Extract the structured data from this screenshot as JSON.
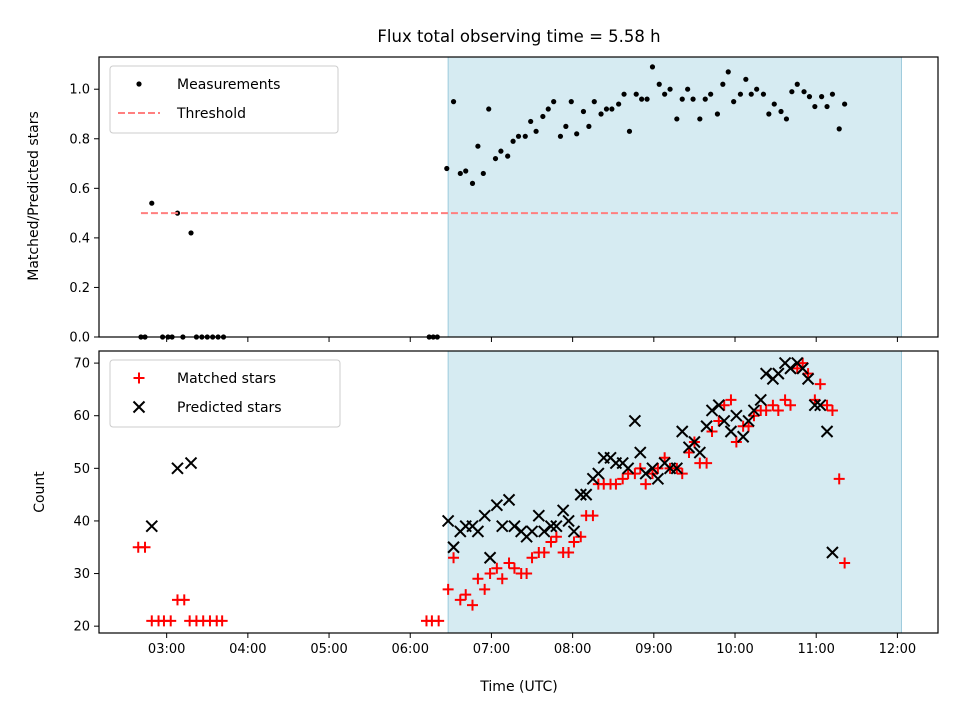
{
  "title": "Flux total observing time = 5.58 h",
  "xlabel": "Time (UTC)",
  "chart_data": [
    {
      "type": "scatter",
      "ylabel": "Matched/Predicted stars",
      "xlim": [
        "02:10",
        "12:30"
      ],
      "ylim": [
        0,
        1.13
      ],
      "yticks": [
        "0.0",
        "0.2",
        "0.4",
        "0.6",
        "0.8",
        "1.0"
      ],
      "ytick_values": [
        0,
        0.2,
        0.4,
        0.6,
        0.8,
        1.0
      ],
      "xticks": [
        "03:00",
        "04:00",
        "05:00",
        "06:00",
        "07:00",
        "08:00",
        "09:00",
        "10:00",
        "11:00",
        "12:00"
      ],
      "shaded_interval": [
        "06:28",
        "12:03"
      ],
      "legend_position": "upper left",
      "series": [
        {
          "name": "Measurements",
          "marker": "dot",
          "color": "#000000",
          "points": [
            [
              "02:41",
              0
            ],
            [
              "02:44",
              0
            ],
            [
              "02:49",
              0.54
            ],
            [
              "02:57",
              0
            ],
            [
              "03:01",
              0
            ],
            [
              "03:04",
              0
            ],
            [
              "03:08",
              0.5
            ],
            [
              "03:12",
              0
            ],
            [
              "03:18",
              0.42
            ],
            [
              "03:22",
              0
            ],
            [
              "03:26",
              0
            ],
            [
              "03:30",
              0
            ],
            [
              "03:34",
              0
            ],
            [
              "03:38",
              0
            ],
            [
              "03:42",
              0
            ],
            [
              "06:14",
              0
            ],
            [
              "06:17",
              0
            ],
            [
              "06:20",
              0
            ],
            [
              "06:27",
              0.68
            ],
            [
              "06:32",
              0.95
            ],
            [
              "06:37",
              0.66
            ],
            [
              "06:41",
              0.67
            ],
            [
              "06:46",
              0.62
            ],
            [
              "06:50",
              0.77
            ],
            [
              "06:54",
              0.66
            ],
            [
              "06:58",
              0.92
            ],
            [
              "07:03",
              0.72
            ],
            [
              "07:07",
              0.75
            ],
            [
              "07:12",
              0.73
            ],
            [
              "07:16",
              0.79
            ],
            [
              "07:20",
              0.81
            ],
            [
              "07:25",
              0.81
            ],
            [
              "07:29",
              0.87
            ],
            [
              "07:33",
              0.83
            ],
            [
              "07:38",
              0.89
            ],
            [
              "07:42",
              0.92
            ],
            [
              "07:46",
              0.95
            ],
            [
              "07:51",
              0.81
            ],
            [
              "07:55",
              0.85
            ],
            [
              "07:59",
              0.95
            ],
            [
              "08:03",
              0.82
            ],
            [
              "08:08",
              0.91
            ],
            [
              "08:12",
              0.85
            ],
            [
              "08:16",
              0.95
            ],
            [
              "08:21",
              0.9
            ],
            [
              "08:25",
              0.92
            ],
            [
              "08:29",
              0.92
            ],
            [
              "08:34",
              0.94
            ],
            [
              "08:38",
              0.98
            ],
            [
              "08:42",
              0.83
            ],
            [
              "08:47",
              0.98
            ],
            [
              "08:51",
              0.96
            ],
            [
              "08:55",
              0.96
            ],
            [
              "08:59",
              1.09
            ],
            [
              "09:04",
              1.02
            ],
            [
              "09:08",
              0.98
            ],
            [
              "09:12",
              1.0
            ],
            [
              "09:17",
              0.88
            ],
            [
              "09:21",
              0.96
            ],
            [
              "09:25",
              1.0
            ],
            [
              "09:29",
              0.96
            ],
            [
              "09:34",
              0.88
            ],
            [
              "09:38",
              0.96
            ],
            [
              "09:42",
              0.98
            ],
            [
              "09:47",
              0.9
            ],
            [
              "09:51",
              1.02
            ],
            [
              "09:55",
              1.07
            ],
            [
              "09:59",
              0.95
            ],
            [
              "10:04",
              0.98
            ],
            [
              "10:08",
              1.04
            ],
            [
              "10:12",
              0.98
            ],
            [
              "10:16",
              1.0
            ],
            [
              "10:21",
              0.98
            ],
            [
              "10:25",
              0.9
            ],
            [
              "10:29",
              0.94
            ],
            [
              "10:34",
              0.91
            ],
            [
              "10:38",
              0.88
            ],
            [
              "10:42",
              0.99
            ],
            [
              "10:46",
              1.02
            ],
            [
              "10:51",
              0.99
            ],
            [
              "10:55",
              0.97
            ],
            [
              "10:59",
              0.93
            ],
            [
              "11:04",
              0.97
            ],
            [
              "11:08",
              0.93
            ],
            [
              "11:12",
              0.98
            ],
            [
              "11:17",
              0.84
            ],
            [
              "11:21",
              0.94
            ]
          ]
        },
        {
          "name": "Threshold",
          "style": "dashed",
          "color": "#ff7f7f",
          "points": [
            [
              "02:41",
              0.5
            ],
            [
              "12:02",
              0.5
            ]
          ]
        }
      ]
    },
    {
      "type": "scatter",
      "ylabel": "Count",
      "xlim": [
        "02:10",
        "12:30"
      ],
      "ylim": [
        18.7,
        72.3
      ],
      "yticks": [
        "20",
        "30",
        "40",
        "50",
        "60",
        "70"
      ],
      "ytick_values": [
        20,
        30,
        40,
        50,
        60,
        70
      ],
      "xticks": [
        "03:00",
        "04:00",
        "05:00",
        "06:00",
        "07:00",
        "08:00",
        "09:00",
        "10:00",
        "11:00",
        "12:00"
      ],
      "shaded_interval": [
        "06:28",
        "12:03"
      ],
      "legend_position": "upper left",
      "series": [
        {
          "name": "Matched stars",
          "marker": "plus",
          "color": "#ff0000",
          "points": [
            [
              "02:39",
              35
            ],
            [
              "02:44",
              35
            ],
            [
              "02:49",
              21
            ],
            [
              "02:54",
              21
            ],
            [
              "02:58",
              21
            ],
            [
              "03:03",
              21
            ],
            [
              "03:08",
              25
            ],
            [
              "03:13",
              25
            ],
            [
              "03:17",
              21
            ],
            [
              "03:22",
              21
            ],
            [
              "03:27",
              21
            ],
            [
              "03:32",
              21
            ],
            [
              "03:37",
              21
            ],
            [
              "03:41",
              21
            ],
            [
              "06:12",
              21
            ],
            [
              "06:16",
              21
            ],
            [
              "06:21",
              21
            ],
            [
              "06:28",
              27
            ],
            [
              "06:32",
              33
            ],
            [
              "06:37",
              25
            ],
            [
              "06:41",
              26
            ],
            [
              "06:46",
              24
            ],
            [
              "06:50",
              29
            ],
            [
              "06:55",
              27
            ],
            [
              "06:59",
              30
            ],
            [
              "07:04",
              31
            ],
            [
              "07:08",
              29
            ],
            [
              "07:13",
              32
            ],
            [
              "07:17",
              31
            ],
            [
              "07:22",
              30
            ],
            [
              "07:26",
              30
            ],
            [
              "07:30",
              33
            ],
            [
              "07:35",
              34
            ],
            [
              "07:39",
              34
            ],
            [
              "07:44",
              36
            ],
            [
              "07:48",
              37
            ],
            [
              "07:53",
              34
            ],
            [
              "07:57",
              34
            ],
            [
              "08:01",
              36
            ],
            [
              "08:06",
              37
            ],
            [
              "08:10",
              41
            ],
            [
              "08:15",
              41
            ],
            [
              "08:19",
              47
            ],
            [
              "08:23",
              47
            ],
            [
              "08:28",
              47
            ],
            [
              "08:32",
              47
            ],
            [
              "08:37",
              48
            ],
            [
              "08:41",
              49
            ],
            [
              "08:46",
              49
            ],
            [
              "08:50",
              50
            ],
            [
              "08:54",
              47
            ],
            [
              "08:59",
              49
            ],
            [
              "09:03",
              50
            ],
            [
              "09:08",
              52
            ],
            [
              "09:12",
              50
            ],
            [
              "09:17",
              50
            ],
            [
              "09:21",
              49
            ],
            [
              "09:26",
              53
            ],
            [
              "09:30",
              55
            ],
            [
              "09:34",
              51
            ],
            [
              "09:39",
              51
            ],
            [
              "09:43",
              57
            ],
            [
              "09:48",
              59
            ],
            [
              "09:52",
              62
            ],
            [
              "09:57",
              63
            ],
            [
              "10:01",
              55
            ],
            [
              "10:06",
              58
            ],
            [
              "10:10",
              58
            ],
            [
              "10:14",
              60
            ],
            [
              "10:19",
              61
            ],
            [
              "10:23",
              61
            ],
            [
              "10:28",
              62
            ],
            [
              "10:32",
              61
            ],
            [
              "10:37",
              63
            ],
            [
              "10:41",
              62
            ],
            [
              "10:46",
              69
            ],
            [
              "10:50",
              70
            ],
            [
              "10:54",
              68
            ],
            [
              "10:59",
              63
            ],
            [
              "11:03",
              66
            ],
            [
              "11:08",
              62
            ],
            [
              "11:12",
              61
            ],
            [
              "11:17",
              48
            ],
            [
              "11:21",
              32
            ]
          ]
        },
        {
          "name": "Predicted stars",
          "marker": "x",
          "color": "#000000",
          "points": [
            [
              "02:49",
              39
            ],
            [
              "03:08",
              50
            ],
            [
              "03:18",
              51
            ],
            [
              "06:28",
              40
            ],
            [
              "06:32",
              35
            ],
            [
              "06:37",
              38
            ],
            [
              "06:41",
              39
            ],
            [
              "06:46",
              39
            ],
            [
              "06:50",
              38
            ],
            [
              "06:55",
              41
            ],
            [
              "06:59",
              33
            ],
            [
              "07:04",
              43
            ],
            [
              "07:08",
              39
            ],
            [
              "07:13",
              44
            ],
            [
              "07:17",
              39
            ],
            [
              "07:22",
              38
            ],
            [
              "07:26",
              37
            ],
            [
              "07:30",
              38
            ],
            [
              "07:35",
              41
            ],
            [
              "07:39",
              38
            ],
            [
              "07:44",
              39
            ],
            [
              "07:48",
              39
            ],
            [
              "07:53",
              42
            ],
            [
              "07:57",
              40
            ],
            [
              "08:01",
              38
            ],
            [
              "08:06",
              45
            ],
            [
              "08:10",
              45
            ],
            [
              "08:15",
              48
            ],
            [
              "08:19",
              49
            ],
            [
              "08:23",
              52
            ],
            [
              "08:28",
              52
            ],
            [
              "08:32",
              51
            ],
            [
              "08:37",
              51
            ],
            [
              "08:41",
              50
            ],
            [
              "08:46",
              59
            ],
            [
              "08:50",
              53
            ],
            [
              "08:54",
              49
            ],
            [
              "08:59",
              50
            ],
            [
              "09:03",
              48
            ],
            [
              "09:08",
              51
            ],
            [
              "09:12",
              50
            ],
            [
              "09:17",
              50
            ],
            [
              "09:21",
              57
            ],
            [
              "09:26",
              54
            ],
            [
              "09:30",
              55
            ],
            [
              "09:34",
              53
            ],
            [
              "09:39",
              58
            ],
            [
              "09:43",
              61
            ],
            [
              "09:48",
              62
            ],
            [
              "09:52",
              59
            ],
            [
              "09:57",
              57
            ],
            [
              "10:01",
              60
            ],
            [
              "10:06",
              56
            ],
            [
              "10:10",
              59
            ],
            [
              "10:14",
              61
            ],
            [
              "10:19",
              63
            ],
            [
              "10:23",
              68
            ],
            [
              "10:28",
              67
            ],
            [
              "10:32",
              68
            ],
            [
              "10:37",
              70
            ],
            [
              "10:41",
              69
            ],
            [
              "10:46",
              70
            ],
            [
              "10:50",
              69
            ],
            [
              "10:54",
              67
            ],
            [
              "10:59",
              62
            ],
            [
              "11:03",
              62
            ],
            [
              "11:08",
              57
            ],
            [
              "11:12",
              34
            ]
          ]
        }
      ]
    }
  ]
}
